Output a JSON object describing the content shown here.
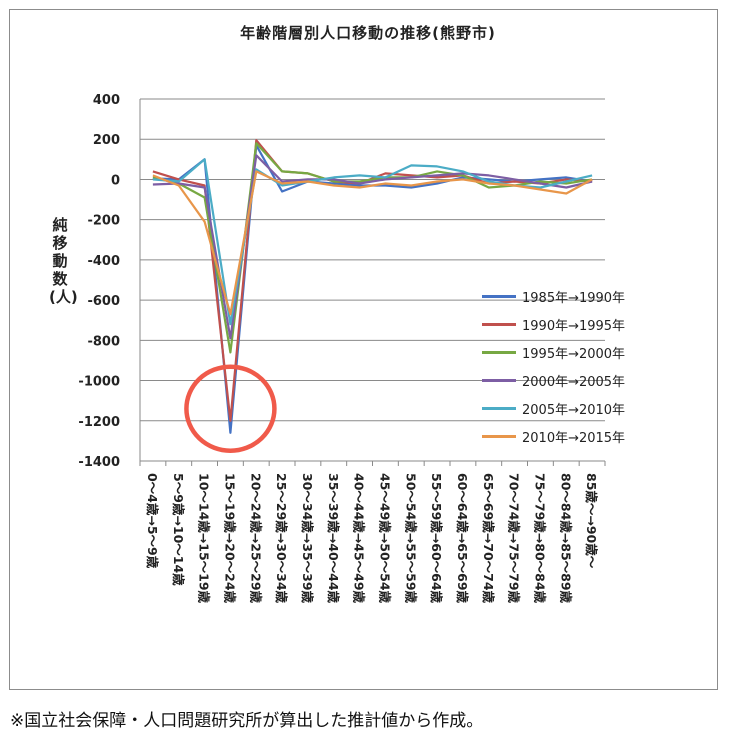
{
  "chart_data": {
    "type": "line",
    "title": "年齢階層別人口移動の推移(熊野市)",
    "ylabel": "純移動数(人)",
    "ylim": [
      -1400,
      400
    ],
    "yticks": [
      400,
      200,
      0,
      -200,
      -400,
      -600,
      -800,
      -1000,
      -1200,
      -1400
    ],
    "grid": true,
    "legend_position": "right",
    "categories": [
      "0～4歳→5～9歳",
      "5～9歳→10～14歳",
      "10～14歳→15～19歳",
      "15～19歳→20～24歳",
      "20～24歳→25～29歳",
      "25～29歳→30～34歳",
      "30～34歳→35～39歳",
      "35～39歳→40～44歳",
      "40～44歳→45～49歳",
      "45～49歳→50～54歳",
      "50～54歳→55～59歳",
      "55～59歳→60～64歳",
      "60～64歳→65～69歳",
      "65～69歳→70～74歳",
      "70～74歳→75～79歳",
      "75～79歳→80～84歳",
      "80～84歳→85～89歳",
      "85歳～→90歳～"
    ],
    "series": [
      {
        "name": "1985年→1990年",
        "color": "#4472c4",
        "values": [
          5,
          0,
          100,
          -1260,
          170,
          -60,
          -10,
          -20,
          -30,
          -30,
          -40,
          -20,
          10,
          0,
          -10,
          0,
          10,
          -10
        ]
      },
      {
        "name": "1990年→1995年",
        "color": "#c0504d",
        "values": [
          40,
          0,
          -30,
          -1200,
          195,
          40,
          30,
          -10,
          -20,
          30,
          20,
          10,
          20,
          -20,
          -10,
          -20,
          0,
          -10
        ]
      },
      {
        "name": "1995年→2000年",
        "color": "#77a843",
        "values": [
          10,
          -20,
          -90,
          -860,
          180,
          40,
          30,
          -10,
          -10,
          10,
          10,
          40,
          20,
          -40,
          -30,
          -10,
          -20,
          0
        ]
      },
      {
        "name": "2000年→2005年",
        "color": "#7d5ea4",
        "values": [
          -25,
          -20,
          -40,
          -790,
          120,
          -10,
          0,
          0,
          -20,
          0,
          10,
          20,
          30,
          20,
          0,
          -20,
          -40,
          -10
        ]
      },
      {
        "name": "2005年→2010年",
        "color": "#4bacc6",
        "values": [
          0,
          -10,
          100,
          -720,
          50,
          -30,
          -10,
          10,
          20,
          10,
          70,
          65,
          40,
          -10,
          -30,
          -40,
          -10,
          20
        ]
      },
      {
        "name": "2010年→2015年",
        "color": "#e8964a",
        "values": [
          20,
          -30,
          -210,
          -670,
          40,
          -20,
          -10,
          -30,
          -40,
          -20,
          -30,
          -10,
          0,
          -20,
          -30,
          -50,
          -70,
          0
        ]
      }
    ],
    "annotation": {
      "type": "circle",
      "color": "#f05a4a",
      "category_index": 3,
      "y_center": -1140
    }
  },
  "footnote": "※国立社会保障・人口問題研究所が算出した推計値から作成。"
}
